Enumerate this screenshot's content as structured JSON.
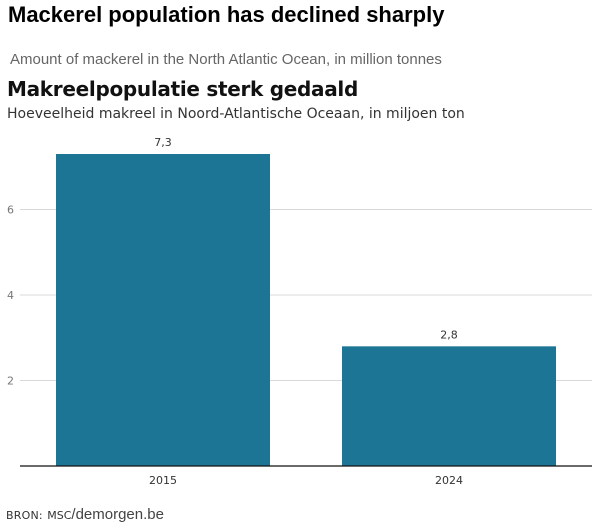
{
  "header": {
    "english_title": "Mackerel population has declined sharply",
    "english_subtitle": "Amount of mackerel in the North Atlantic Ocean, in million tonnes"
  },
  "chart_data": {
    "type": "bar",
    "title": "Makreelpopulatie sterk gedaald",
    "subtitle": "Hoeveelheid makreel in Noord-Atlantische Oceaan, in miljoen ton",
    "categories": [
      "2015",
      "2024"
    ],
    "values": [
      7.3,
      2.8
    ],
    "value_labels": [
      "7,3",
      "2,8"
    ],
    "yticks": [
      "2",
      "4",
      "6"
    ],
    "ylim": [
      0,
      7.3
    ],
    "grid": true,
    "bar_color": "#1c7595",
    "grid_color": "#d9d9d9",
    "axis_color": "#111111"
  },
  "footer": {
    "source_label": "BRON:",
    "source_name": "MSC",
    "site": "/demorgen.be"
  }
}
